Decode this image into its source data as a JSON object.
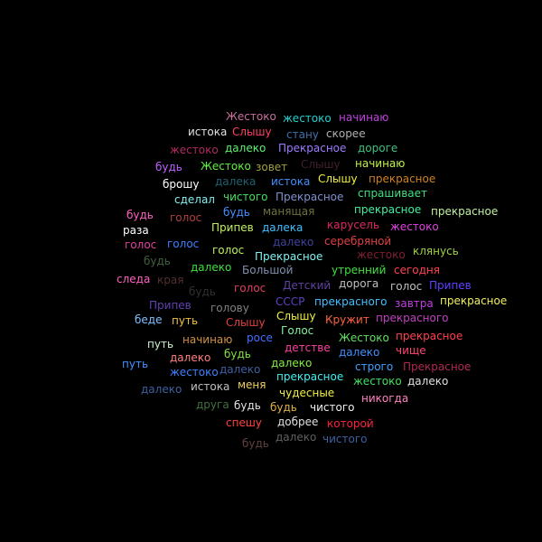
{
  "words": [
    {
      "text": "Жестоко",
      "color": "#c8709c"
    },
    {
      "text": "жестоко",
      "color": "#20d0d0"
    },
    {
      "text": "начинаю",
      "color": "#c040e0"
    },
    {
      "text": "истока",
      "color": "#e0e0e0"
    },
    {
      "text": "Слышу",
      "color": "#ff4060"
    },
    {
      "text": "стану",
      "color": "#4070a8"
    },
    {
      "text": "скорее",
      "color": "#b0b0b0"
    },
    {
      "text": "жестоко",
      "color": "#b02860"
    },
    {
      "text": "далеко",
      "color": "#60f070"
    },
    {
      "text": "Прекрасное",
      "color": "#9c7cff"
    },
    {
      "text": "дороге",
      "color": "#40c080"
    },
    {
      "text": "будь",
      "color": "#c060ff"
    },
    {
      "text": "Жестоко",
      "color": "#60f040"
    },
    {
      "text": "зовет",
      "color": "#a0a040"
    },
    {
      "text": "Слышу",
      "color": "#402030"
    },
    {
      "text": "начинаю",
      "color": "#c0f040"
    },
    {
      "text": "брошу",
      "color": "#ffffff"
    },
    {
      "text": "далека",
      "color": "#206070"
    },
    {
      "text": "истока",
      "color": "#4090ff"
    },
    {
      "text": "Слышу",
      "color": "#f0f040"
    },
    {
      "text": "прекрасное",
      "color": "#d08020"
    },
    {
      "text": "сделал",
      "color": "#80f0f0"
    },
    {
      "text": "чистого",
      "color": "#40e060"
    },
    {
      "text": "Прекрасное",
      "color": "#8090d0"
    },
    {
      "text": "спрашивает",
      "color": "#40e080"
    },
    {
      "text": "будь",
      "color": "#ff60c0"
    },
    {
      "text": "голос",
      "color": "#b04040"
    },
    {
      "text": "будь",
      "color": "#4090ff"
    },
    {
      "text": "манящая",
      "color": "#707040"
    },
    {
      "text": "прекрасное",
      "color": "#40f0a0"
    },
    {
      "text": "прекрасное",
      "color": "#c0f0a0"
    },
    {
      "text": "раза",
      "color": "#ffffff"
    },
    {
      "text": "Припев",
      "color": "#c0f060"
    },
    {
      "text": "далека",
      "color": "#40c0ff"
    },
    {
      "text": "карусель",
      "color": "#e02860"
    },
    {
      "text": "жестоко",
      "color": "#e040e0"
    },
    {
      "text": "голос",
      "color": "#e040a0"
    },
    {
      "text": "голос",
      "color": "#4080ff"
    },
    {
      "text": "далеко",
      "color": "#4040a0"
    },
    {
      "text": "серебряной",
      "color": "#e04040"
    },
    {
      "text": "голос",
      "color": "#c0f060"
    },
    {
      "text": "Прекрасное",
      "color": "#80f0f0"
    },
    {
      "text": "жестоко",
      "color": "#802030"
    },
    {
      "text": "клянусь",
      "color": "#a0d040"
    },
    {
      "text": "будь",
      "color": "#406040"
    },
    {
      "text": "далеко",
      "color": "#40e040"
    },
    {
      "text": "Большой",
      "color": "#8090b0"
    },
    {
      "text": "утренний",
      "color": "#40e040"
    },
    {
      "text": "сегодня",
      "color": "#ff4050"
    },
    {
      "text": "следа",
      "color": "#ff60c0"
    },
    {
      "text": "края",
      "color": "#503030"
    },
    {
      "text": "будь",
      "color": "#303030"
    },
    {
      "text": "голос",
      "color": "#e04060"
    },
    {
      "text": "Детский",
      "color": "#6040a0"
    },
    {
      "text": "дорога",
      "color": "#c0c0c0"
    },
    {
      "text": "голос",
      "color": "#c0c0c0"
    },
    {
      "text": "Припев",
      "color": "#6040ff"
    },
    {
      "text": "Припев",
      "color": "#6040b0"
    },
    {
      "text": "голову",
      "color": "#808080"
    },
    {
      "text": "СССР",
      "color": "#6040c0"
    },
    {
      "text": "прекрасного",
      "color": "#40c0ff"
    },
    {
      "text": "завтра",
      "color": "#c040e0"
    },
    {
      "text": "прекрасное",
      "color": "#f0f060"
    },
    {
      "text": "беде",
      "color": "#80c0ff"
    },
    {
      "text": "путь",
      "color": "#f0c040"
    },
    {
      "text": "Слышу",
      "color": "#e04040"
    },
    {
      "text": "Слышу",
      "color": "#f0f040"
    },
    {
      "text": "Кружит",
      "color": "#ff6040"
    },
    {
      "text": "прекрасного",
      "color": "#c040c0"
    },
    {
      "text": "Голос",
      "color": "#80f0a0"
    },
    {
      "text": "путь",
      "color": "#d0f0d0"
    },
    {
      "text": "начинаю",
      "color": "#d09040"
    },
    {
      "text": "росе",
      "color": "#4070ff"
    },
    {
      "text": "Жестоко",
      "color": "#60e060"
    },
    {
      "text": "прекрасное",
      "color": "#ff4050"
    },
    {
      "text": "детстве",
      "color": "#ff40a0"
    },
    {
      "text": "будь",
      "color": "#80e040"
    },
    {
      "text": "далеко",
      "color": "#4090ff"
    },
    {
      "text": "чище",
      "color": "#ff4070"
    },
    {
      "text": "путь",
      "color": "#4090ff"
    },
    {
      "text": "далеко",
      "color": "#ff8080"
    },
    {
      "text": "жестоко",
      "color": "#4080ff"
    },
    {
      "text": "далеко",
      "color": "#4060a0"
    },
    {
      "text": "далеко",
      "color": "#80f040"
    },
    {
      "text": "строго",
      "color": "#40a0ff"
    },
    {
      "text": "Прекрасное",
      "color": "#b02850"
    },
    {
      "text": "прекрасное",
      "color": "#40f0f0"
    },
    {
      "text": "жестоко",
      "color": "#40e060"
    },
    {
      "text": "далеко",
      "color": "#e0e0e0"
    },
    {
      "text": "далеко",
      "color": "#4060a0"
    },
    {
      "text": "истока",
      "color": "#c0c0c0"
    },
    {
      "text": "меня",
      "color": "#f0d060"
    },
    {
      "text": "чудесные",
      "color": "#f0f040"
    },
    {
      "text": "никогда",
      "color": "#ff80c0"
    },
    {
      "text": "друга",
      "color": "#407040"
    },
    {
      "text": "будь",
      "color": "#e0e0e0"
    },
    {
      "text": "будь",
      "color": "#e0b040"
    },
    {
      "text": "чистого",
      "color": "#f0f0f0"
    },
    {
      "text": "спешу",
      "color": "#ff4040"
    },
    {
      "text": "добрее",
      "color": "#e0e0e0"
    },
    {
      "text": "которой",
      "color": "#ff2040"
    },
    {
      "text": "будь",
      "color": "#604040"
    },
    {
      "text": "далеко",
      "color": "#606060"
    },
    {
      "text": "чистого",
      "color": "#4060a0"
    }
  ]
}
